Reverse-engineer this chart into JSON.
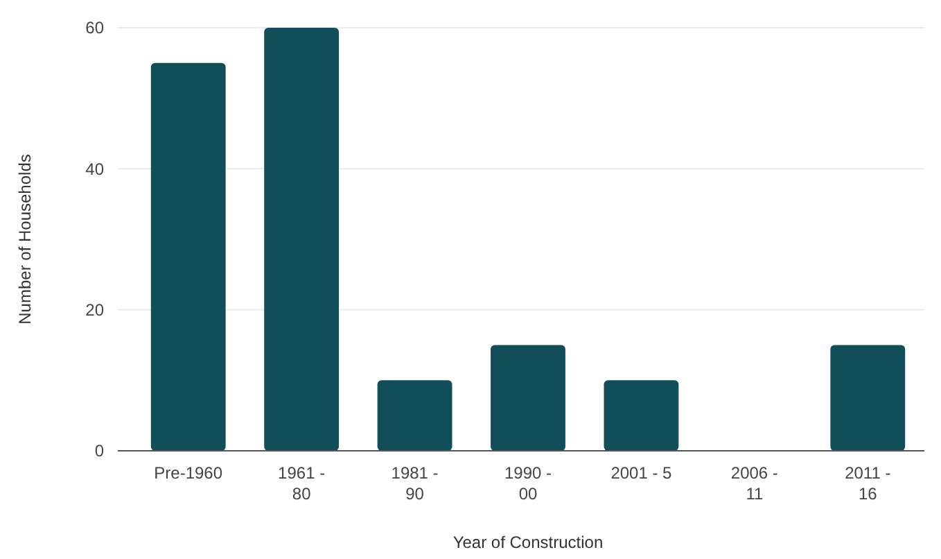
{
  "chart_data": {
    "type": "bar",
    "xlabel": "Year of Construction",
    "ylabel": "Number of Households",
    "categories": [
      "Pre-1960",
      "1961 - 80",
      "1981 - 90",
      "1990 - 00",
      "2001 - 5",
      "2006 - 11",
      "2011 - 16"
    ],
    "values": [
      55,
      60,
      10,
      15,
      10,
      0,
      15
    ],
    "color": "#124e5a",
    "ylim": [
      0,
      60
    ],
    "yticks": [
      0,
      20,
      40,
      60
    ],
    "grid": "y"
  }
}
